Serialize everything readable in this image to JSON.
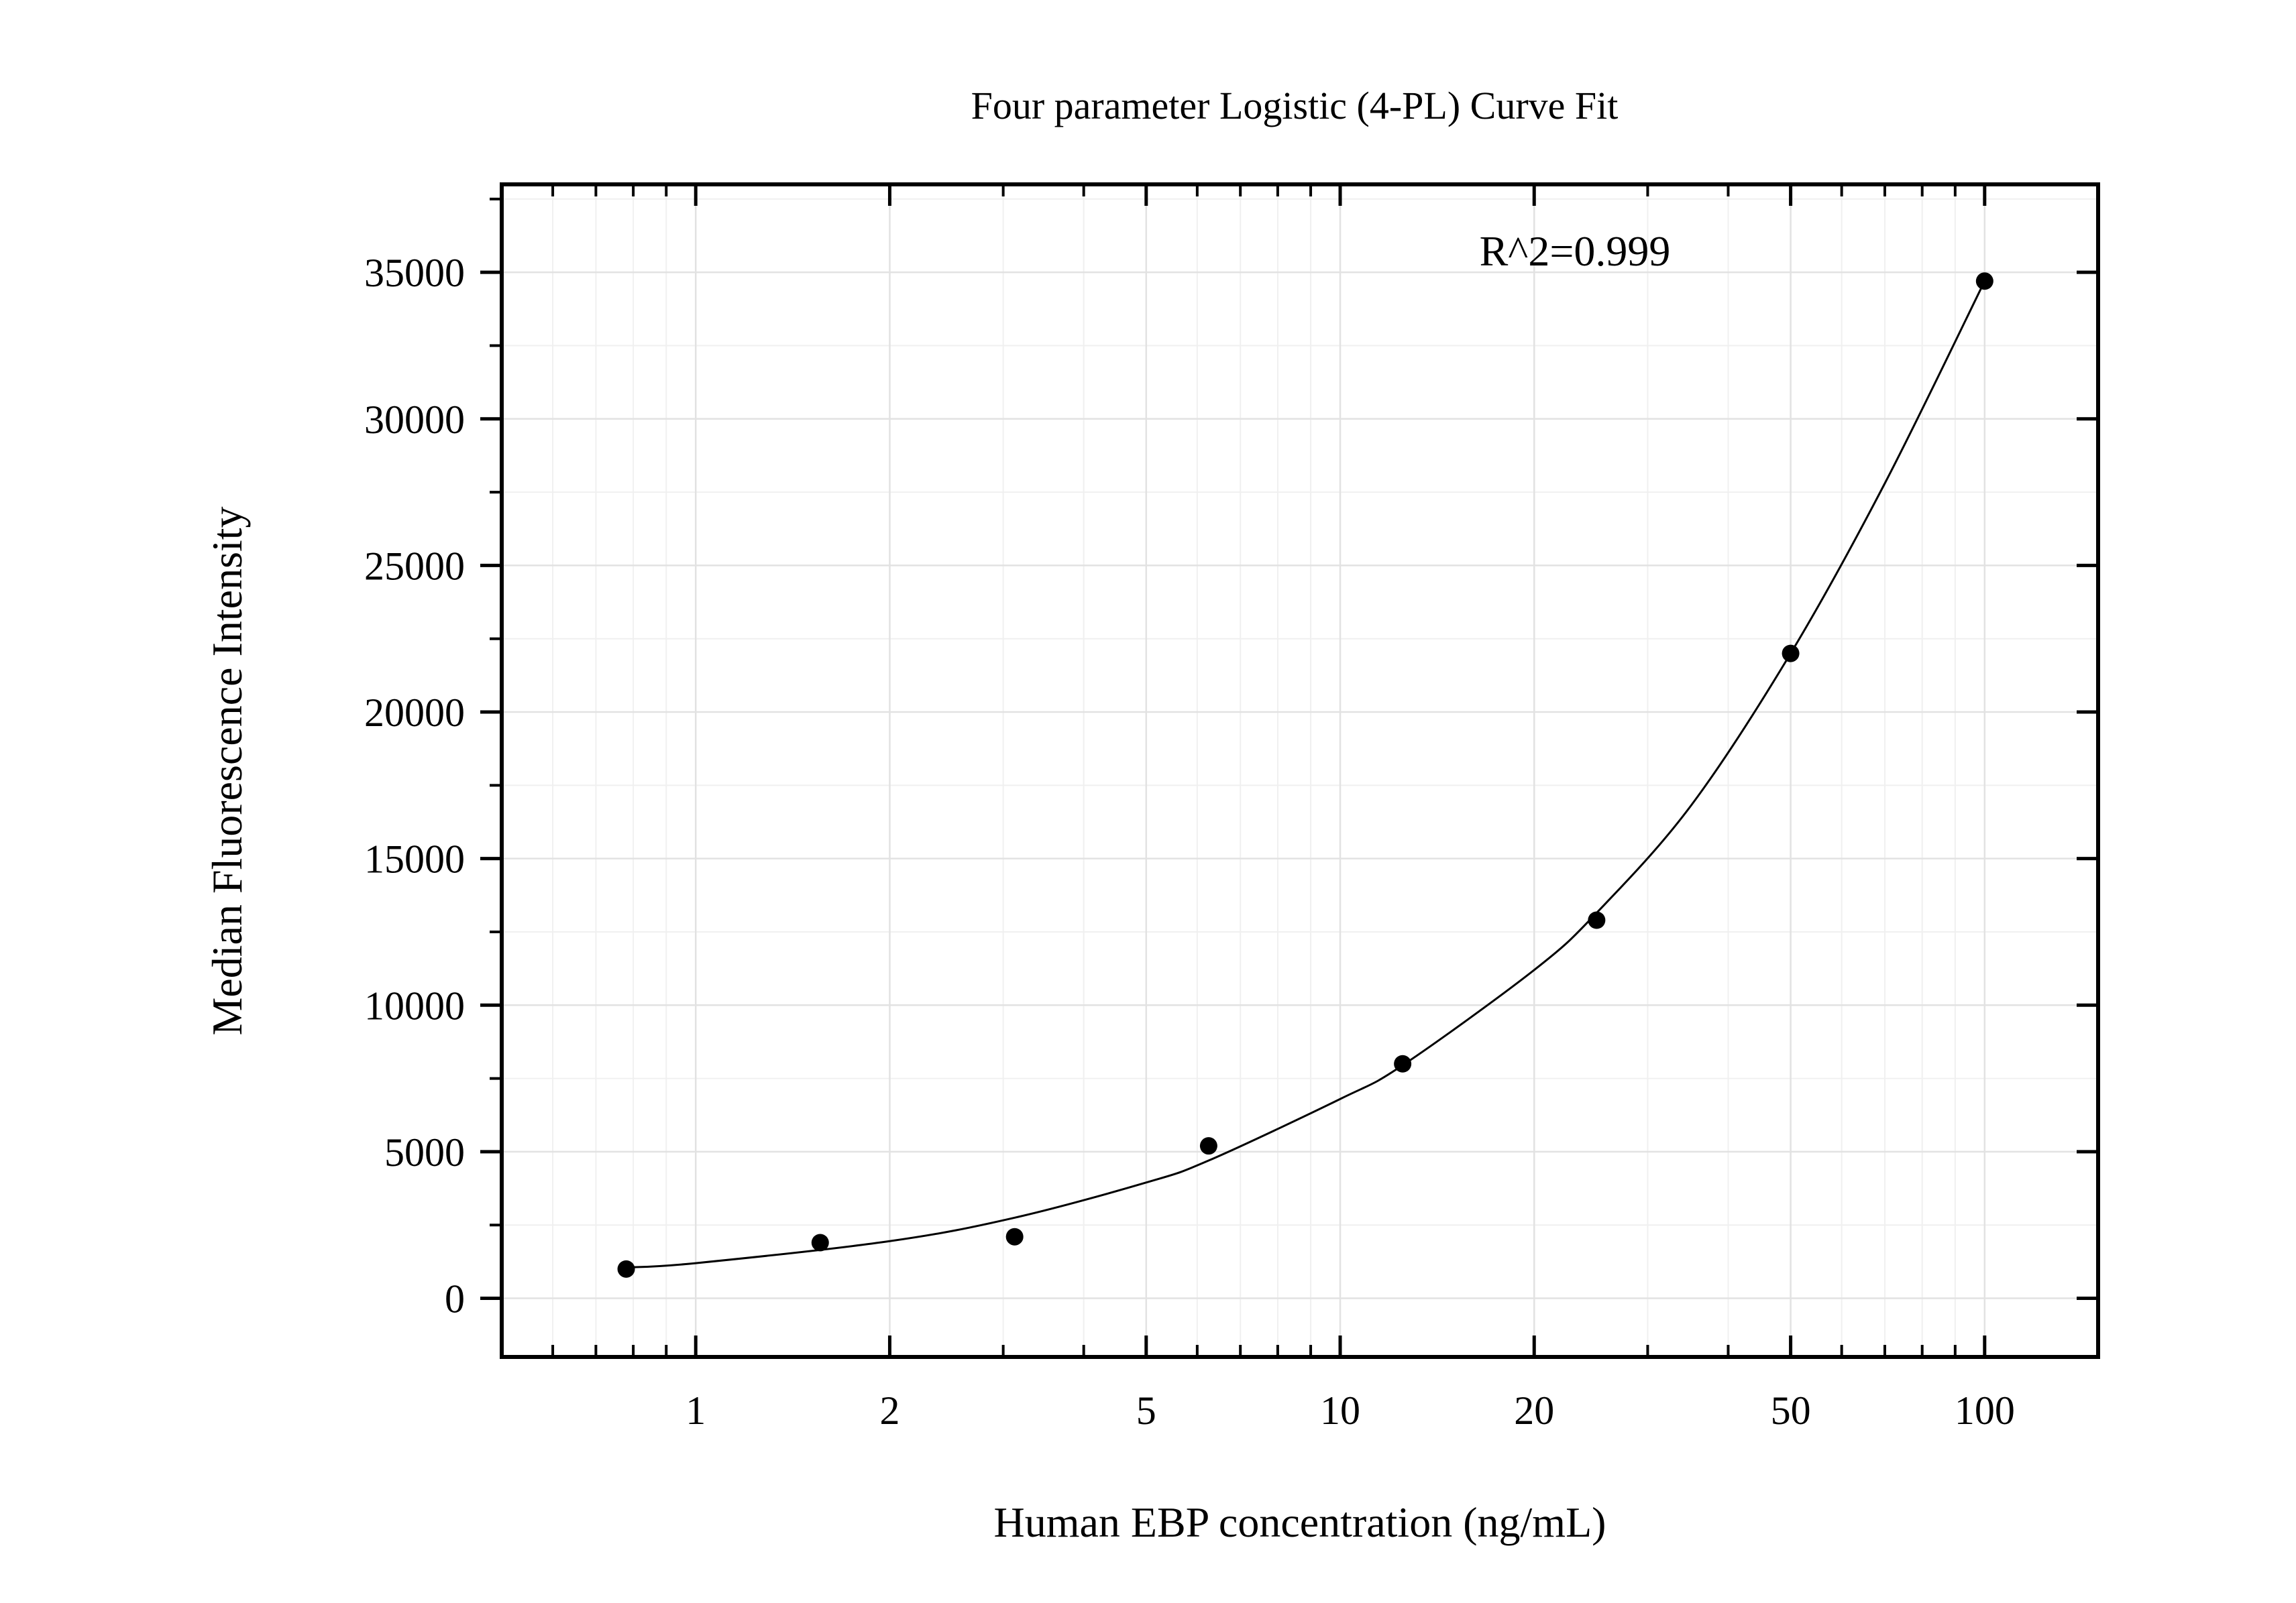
{
  "chart_data": {
    "type": "scatter",
    "title": "Four parameter Logistic (4-PL) Curve Fit",
    "xlabel": "Human EBP concentration (ng/mL)",
    "ylabel": "Median Fluorescence Intensity",
    "x_scale": "log",
    "xlim": [
      0.5,
      150
    ],
    "ylim": [
      -2000,
      38000
    ],
    "x_ticks": [
      {
        "value": 1,
        "label": "1"
      },
      {
        "value": 2,
        "label": "2"
      },
      {
        "value": 5,
        "label": "5"
      },
      {
        "value": 10,
        "label": "10"
      },
      {
        "value": 20,
        "label": "20"
      },
      {
        "value": 50,
        "label": "50"
      },
      {
        "value": 100,
        "label": "100"
      }
    ],
    "y_ticks": [
      {
        "value": 0,
        "label": "0"
      },
      {
        "value": 5000,
        "label": "5000"
      },
      {
        "value": 10000,
        "label": "10000"
      },
      {
        "value": 15000,
        "label": "15000"
      },
      {
        "value": 20000,
        "label": "20000"
      },
      {
        "value": 25000,
        "label": "25000"
      },
      {
        "value": 30000,
        "label": "30000"
      },
      {
        "value": 35000,
        "label": "35000"
      }
    ],
    "grid": true,
    "annotation": "R^2=0.999",
    "series": [
      {
        "type": "scatter",
        "x": [
          0.78,
          1.56,
          3.125,
          6.25,
          12.5,
          25,
          50,
          100
        ],
        "y": [
          1000,
          1900,
          2100,
          5200,
          8000,
          12900,
          22000,
          34700
        ]
      },
      {
        "type": "line",
        "x": [
          0.78,
          1,
          2,
          3.125,
          5,
          6.25,
          10,
          12.5,
          20,
          25,
          35,
          50,
          70,
          100
        ],
        "y": [
          1050,
          1200,
          1950,
          2750,
          3950,
          4700,
          6800,
          7950,
          11200,
          13150,
          16800,
          22000,
          27800,
          34700
        ]
      }
    ]
  }
}
